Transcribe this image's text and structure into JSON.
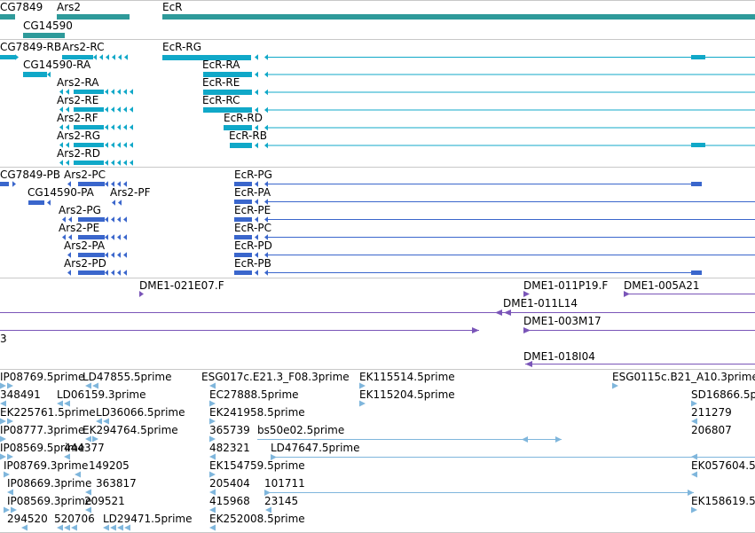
{
  "colors": {
    "gene": "#2e9a9a",
    "mrna": "#10a8c8",
    "protein": "#3a66cc",
    "clone": "#7a55b8",
    "est": "#7fb6dc",
    "separator": "#c8c8c8"
  },
  "tracks": {
    "genes": {
      "labels": [
        "CG7849",
        "Ars2",
        "EcR",
        "CG14590"
      ]
    },
    "mrnas": {
      "labels": [
        "CG7849-RB",
        "Ars2-RC",
        "EcR-RG",
        "CG14590-RA",
        "EcR-RA",
        "Ars2-RA",
        "EcR-RE",
        "Ars2-RE",
        "EcR-RC",
        "Ars2-RF",
        "EcR-RD",
        "Ars2-RG",
        "EcR-RB",
        "Ars2-RD"
      ]
    },
    "proteins": {
      "labels": [
        "CG7849-PB",
        "Ars2-PC",
        "EcR-PG",
        "CG14590-PA",
        "Ars2-PF",
        "EcR-PA",
        "Ars2-PG",
        "EcR-PE",
        "Ars2-PE",
        "EcR-PC",
        "Ars2-PA",
        "EcR-PD",
        "Ars2-PD",
        "EcR-PB"
      ]
    },
    "clones": {
      "labels": [
        "DME1-021E07.F",
        "DME1-011P19.F",
        "DME1-005A21",
        "DME1-011L14",
        "DME1-003M17",
        "3",
        "DME1-018I04"
      ]
    },
    "ests": {
      "labels": [
        "IP08769.5prime",
        "LD47855.5prime",
        "ESG017c.E21.3_F08.3prime",
        "EK115514.5prime",
        "ESG0115c.B21_A10.3prime",
        "348491",
        "LD06159.3prime",
        "EC27888.5prime",
        "EK115204.5prime",
        "SD16866.5p",
        "EK225761.5prime",
        "LD36066.5prime",
        "EK241958.5prime",
        "211279",
        "IP08777.3prime",
        "EK294764.5prime",
        "365739",
        "bs50e02.5prime",
        "206807",
        "IP08569.5prime",
        "444377",
        "482321",
        "LD47647.5prime",
        "IP08769.3prime",
        "149205",
        "EK154759.5prime",
        "EK057604.5",
        "IP08669.3prime",
        "363817",
        "205404",
        "101711",
        "IP08569.3prime",
        "209521",
        "415968",
        "23145",
        "EK158619.5",
        "294520",
        "520706",
        "LD29471.5prime",
        "EK252008.5prime"
      ]
    }
  }
}
